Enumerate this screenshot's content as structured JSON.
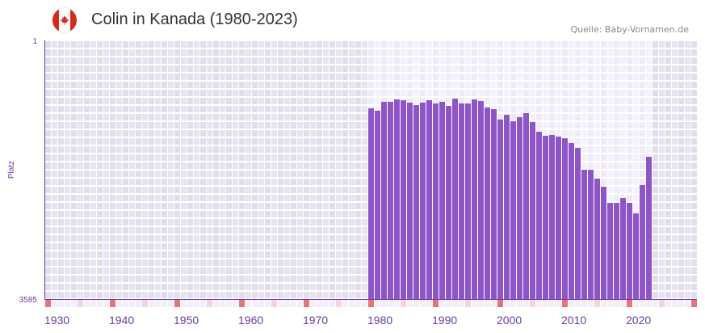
{
  "header": {
    "title": "Colin in Kanada (1980-2023)",
    "source": "Quelle: Baby-Vornamen.de",
    "flag_icon": "canada-flag-icon"
  },
  "colors": {
    "bar": "#8e55c8",
    "axis": "#6a3d9a",
    "decade_marker": "#e8737a",
    "half_decade_marker": "#f5d3dc"
  },
  "chart_data": {
    "type": "bar",
    "title": "Colin in Kanada (1980-2023)",
    "xlabel": "",
    "ylabel": "Platz",
    "ylim": [
      1,
      3585
    ],
    "y_inverted": true,
    "y_ticks": [
      "1",
      "3585"
    ],
    "xlim": [
      1930,
      2030
    ],
    "x_ticks": [
      "1930",
      "1940",
      "1950",
      "1960",
      "1970",
      "1980",
      "1990",
      "2000",
      "2010",
      "2020"
    ],
    "grid": true,
    "x": [
      1980,
      1981,
      1982,
      1983,
      1984,
      1985,
      1986,
      1987,
      1988,
      1989,
      1990,
      1991,
      1992,
      1993,
      1994,
      1995,
      1996,
      1997,
      1998,
      1999,
      2000,
      2001,
      2002,
      2003,
      2004,
      2005,
      2006,
      2007,
      2008,
      2009,
      2010,
      2011,
      2012,
      2013,
      2014,
      2015,
      2016,
      2017,
      2018,
      2019,
      2020,
      2021,
      2022,
      2023
    ],
    "values": [
      942,
      975,
      852,
      852,
      819,
      830,
      863,
      897,
      863,
      830,
      875,
      852,
      908,
      807,
      875,
      875,
      819,
      841,
      931,
      953,
      1097,
      1031,
      1121,
      1065,
      1009,
      1132,
      1267,
      1323,
      1311,
      1334,
      1356,
      1423,
      1491,
      1793,
      1793,
      1916,
      2028,
      2252,
      2252,
      2185,
      2252,
      2398,
      2006,
      1614
    ]
  }
}
